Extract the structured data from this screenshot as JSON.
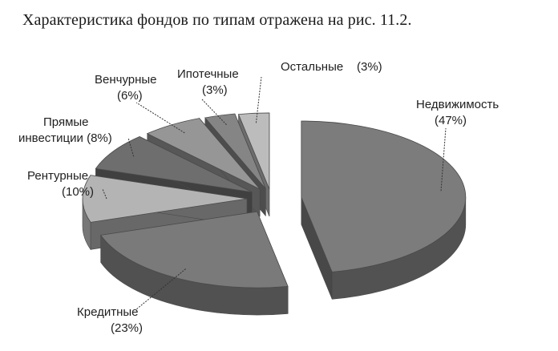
{
  "caption": "Характеристика фондов по типам отражена на рис. 11.2.",
  "chart_data": {
    "type": "pie",
    "title": "",
    "style": "3d-exploded",
    "legend": "none (callout labels)",
    "slices": [
      {
        "label": "Недвижимость",
        "value": 47,
        "value_label": "(47%)",
        "color": "#7c7c7c"
      },
      {
        "label": "Кредитные",
        "value": 23,
        "value_label": "(23%)",
        "color": "#7a7a7a"
      },
      {
        "label": "Рентурные",
        "value": 10,
        "value_label": "(10%)",
        "color": "#b4b4b4"
      },
      {
        "label": "Прямые инвестиции",
        "label_lines": [
          "Прямые",
          "инвестиции (8%)"
        ],
        "value": 8,
        "value_label": "(8%)",
        "color": "#6e6e6e"
      },
      {
        "label": "Венчурные",
        "value": 6,
        "value_label": "(6%)",
        "color": "#969696"
      },
      {
        "label": "Ипотечные",
        "value": 3,
        "value_label": "(3%)",
        "color": "#858585"
      },
      {
        "label": "Остальные",
        "value": 3,
        "value_label": "(3%)",
        "color": "#bcbcbc"
      }
    ]
  }
}
